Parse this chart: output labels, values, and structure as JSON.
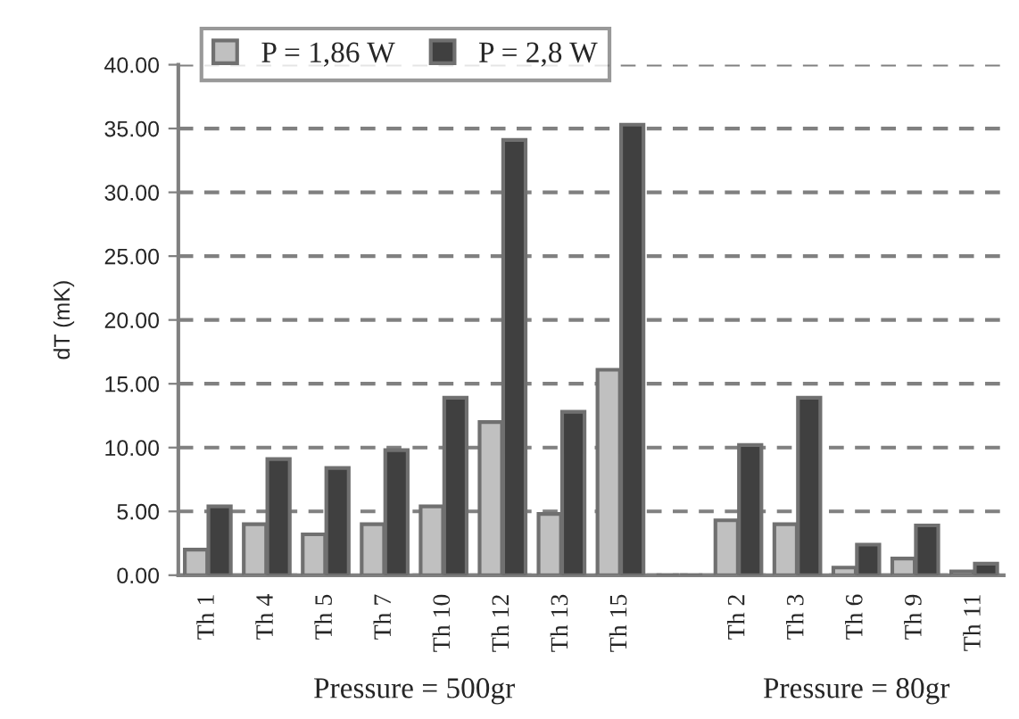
{
  "chart_data": {
    "type": "bar",
    "ylabel": "dT (mK)",
    "categories": [
      "Th 1",
      "Th 4",
      "Th 5",
      "Th 7",
      "Th 10",
      "Th 12",
      "Th 13",
      "Th 15",
      null,
      "Th 2",
      "Th 3",
      "Th 6",
      "Th 9",
      "Th 11"
    ],
    "series": [
      {
        "name": "P = 1,86 W",
        "color": "#c0c0c0",
        "values": [
          2.0,
          4.0,
          3.2,
          4.0,
          5.4,
          12.0,
          4.8,
          16.1,
          null,
          4.3,
          4.0,
          0.6,
          1.3,
          0.3
        ]
      },
      {
        "name": "P = 2,8 W",
        "color": "#404040",
        "values": [
          5.4,
          9.1,
          8.4,
          9.8,
          13.9,
          34.1,
          12.8,
          35.3,
          null,
          10.2,
          13.9,
          2.4,
          3.9,
          0.9
        ]
      }
    ],
    "ylim": [
      0,
      40
    ],
    "yticks": [
      {
        "value": 0,
        "label": "0.00"
      },
      {
        "value": 5,
        "label": "5.00"
      },
      {
        "value": 10,
        "label": "10.00"
      },
      {
        "value": 15,
        "label": "15.00"
      },
      {
        "value": 20,
        "label": "20.00"
      },
      {
        "value": 25,
        "label": "25.00"
      },
      {
        "value": 30,
        "label": "30.00"
      },
      {
        "value": 35,
        "label": "35.00"
      },
      {
        "value": 40,
        "label": "40.00"
      }
    ],
    "grid": "y",
    "legend": "top left",
    "annotations": [
      "Pressure = 500gr",
      "Pressure = 80gr"
    ]
  }
}
